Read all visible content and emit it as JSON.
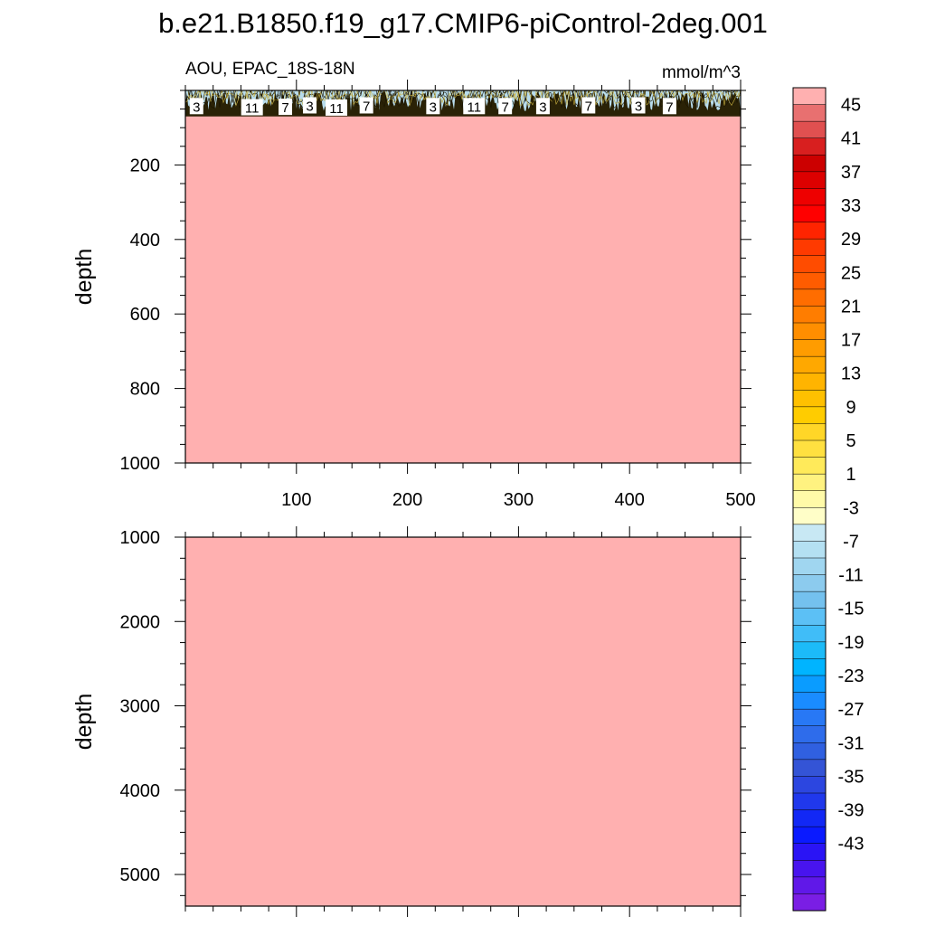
{
  "title": "b.e21.B1850.f19_g17.CMIP6-piControl-2deg.001",
  "colors": {
    "background_field": "#ffb0b0",
    "near_surface_band": "#b8dcec",
    "contour_line": "#1a1400"
  },
  "chart_data": [
    {
      "type": "heatmap",
      "panel": "upper",
      "left_label": "AOU, EPAC_18S-18N",
      "right_label": "mmol/m^3",
      "ylabel": "depth",
      "xlabel": "",
      "xlim": [
        0,
        500
      ],
      "ylim": [
        1000,
        0
      ],
      "y_reversed": true,
      "xticks": [
        100,
        200,
        300,
        400,
        500
      ],
      "yticks": [
        200,
        400,
        600,
        800,
        1000
      ],
      "field_value_below_100m": ">47",
      "surface_band_depth": [
        0,
        60
      ],
      "contour_labels": [
        {
          "x": 10,
          "depth": 42,
          "text": "3"
        },
        {
          "x": 60,
          "depth": 45,
          "text": "11"
        },
        {
          "x": 90,
          "depth": 44,
          "text": "7"
        },
        {
          "x": 112,
          "depth": 40,
          "text": "3"
        },
        {
          "x": 136,
          "depth": 46,
          "text": "11"
        },
        {
          "x": 163,
          "depth": 40,
          "text": "7"
        },
        {
          "x": 223,
          "depth": 42,
          "text": "3"
        },
        {
          "x": 260,
          "depth": 42,
          "text": "11"
        },
        {
          "x": 288,
          "depth": 42,
          "text": "7"
        },
        {
          "x": 322,
          "depth": 42,
          "text": "3"
        },
        {
          "x": 363,
          "depth": 40,
          "text": "7"
        },
        {
          "x": 408,
          "depth": 40,
          "text": "3"
        },
        {
          "x": 436,
          "depth": 42,
          "text": "7"
        }
      ]
    },
    {
      "type": "heatmap",
      "panel": "lower",
      "ylabel": "depth",
      "xlabel": "",
      "xlim": [
        0,
        500
      ],
      "ylim": [
        5375,
        1000
      ],
      "y_reversed": true,
      "xticks": [
        100,
        200,
        300,
        400,
        500
      ],
      "yticks": [
        1000,
        2000,
        3000,
        4000,
        5000
      ],
      "field_value": ">47"
    }
  ],
  "colorbar": {
    "levels": [
      45,
      43,
      41,
      39,
      37,
      35,
      33,
      31,
      29,
      27,
      25,
      23,
      21,
      19,
      17,
      15,
      13,
      11,
      9,
      7,
      5,
      3,
      1,
      -1,
      -3,
      -5,
      -7,
      -9,
      -11,
      -13,
      -15,
      -17,
      -19,
      -21,
      -23,
      -25,
      -27,
      -29,
      -31,
      -33,
      -35,
      -37,
      -39,
      -41,
      -43,
      -45
    ],
    "tick_labels": [
      "45",
      "41",
      "37",
      "33",
      "29",
      "25",
      "21",
      "17",
      "13",
      "9",
      "5",
      "1",
      "-3",
      "-7",
      "-11",
      "-15",
      "-19",
      "-23",
      "-27",
      "-31",
      "-35",
      "-39",
      "-43"
    ],
    "colors_top_to_bottom": [
      "#ffb0b0",
      "#e87070",
      "#e05050",
      "#d81f1f",
      "#cc0000",
      "#dd0000",
      "#ee0000",
      "#ff0000",
      "#ff2400",
      "#ff3a00",
      "#ff4c00",
      "#ff5c00",
      "#ff6d00",
      "#ff7d00",
      "#ff8e00",
      "#ff9c00",
      "#ffa800",
      "#ffb400",
      "#ffc000",
      "#ffcc00",
      "#ffd627",
      "#ffe040",
      "#ffea5a",
      "#fff280",
      "#fffaa8",
      "#fffec8",
      "#c8e8f4",
      "#b4e0f2",
      "#a0d6f0",
      "#8ccbee",
      "#74c1ee",
      "#5cc0f5",
      "#40bdf8",
      "#1cbbf8",
      "#00b4ff",
      "#0a9cff",
      "#1a8cff",
      "#2878f5",
      "#2e6ceb",
      "#3060e0",
      "#3454d6",
      "#2c46e0",
      "#2038ec",
      "#1228f5",
      "#0a1aff",
      "#2a14f5",
      "#4814ee",
      "#6018e8",
      "#7a1ee4"
    ]
  }
}
